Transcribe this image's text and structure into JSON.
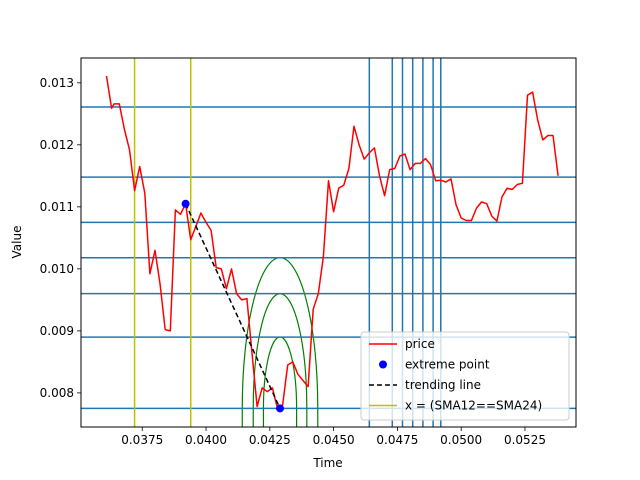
{
  "chart_data": {
    "type": "line",
    "title": "",
    "xlabel": "Time",
    "ylabel": "Value",
    "xlim": [
      0.0351,
      0.0545
    ],
    "ylim": [
      0.00745,
      0.0134
    ],
    "xticks": [
      0.0375,
      0.04,
      0.0425,
      0.045,
      0.0475,
      0.05,
      0.0525
    ],
    "xtick_labels": [
      "0.0375",
      "0.0400",
      "0.0425",
      "0.0450",
      "0.0475",
      "0.0500",
      "0.0525"
    ],
    "yticks": [
      0.008,
      0.009,
      0.01,
      0.011,
      0.012,
      0.013
    ],
    "ytick_labels": [
      "0.008",
      "0.009",
      "0.010",
      "0.011",
      "0.012",
      "0.013"
    ],
    "grid": false,
    "legend_position": "lower-right",
    "colors": {
      "price": "#ff0000",
      "extreme": "#0000ff",
      "trend": "#000000",
      "sma": "#bfbf00",
      "levels": "#1f77b4",
      "arcs": "#008000"
    },
    "series": [
      {
        "name": "price",
        "kind": "line",
        "x": [
          0.0361,
          0.0363,
          0.0364,
          0.0366,
          0.0368,
          0.037,
          0.0372,
          0.0374,
          0.0376,
          0.0378,
          0.038,
          0.0382,
          0.0384,
          0.0386,
          0.0388,
          0.039,
          0.0392,
          0.0394,
          0.0396,
          0.0398,
          0.04,
          0.0402,
          0.0404,
          0.0406,
          0.0408,
          0.041,
          0.0412,
          0.0414,
          0.0416,
          0.0418,
          0.042,
          0.0422,
          0.0424,
          0.0426,
          0.0428,
          0.043,
          0.0432,
          0.0434,
          0.0436,
          0.0438,
          0.044,
          0.0442,
          0.0444,
          0.0446,
          0.0448,
          0.045,
          0.0452,
          0.0454,
          0.0456,
          0.0458,
          0.046,
          0.0462,
          0.0464,
          0.0466,
          0.0468,
          0.047,
          0.0472,
          0.0474,
          0.0476,
          0.0478,
          0.048,
          0.0482,
          0.0484,
          0.0486,
          0.0488,
          0.049,
          0.0492,
          0.0494,
          0.0496,
          0.0498,
          0.05,
          0.0502,
          0.0504,
          0.0506,
          0.0508,
          0.051,
          0.0512,
          0.0514,
          0.0516,
          0.0518,
          0.052,
          0.0522,
          0.0524,
          0.0526,
          0.0528,
          0.053,
          0.0532,
          0.0534,
          0.0536,
          0.0538
        ],
        "y": [
          0.01311,
          0.01259,
          0.01266,
          0.01266,
          0.01225,
          0.01192,
          0.01126,
          0.01165,
          0.01122,
          0.00992,
          0.0103,
          0.00975,
          0.00902,
          0.009,
          0.01095,
          0.01088,
          0.01105,
          0.01047,
          0.01068,
          0.0109,
          0.01075,
          0.01062,
          0.01002,
          0.01,
          0.00968,
          0.01,
          0.0096,
          0.0095,
          0.00952,
          0.00864,
          0.00778,
          0.00808,
          0.00802,
          0.00808,
          0.00775,
          0.0078,
          0.00845,
          0.0085,
          0.0083,
          0.0082,
          0.0081,
          0.00935,
          0.0096,
          0.0102,
          0.01142,
          0.01092,
          0.0113,
          0.01135,
          0.01162,
          0.0123,
          0.012,
          0.01177,
          0.01187,
          0.01195,
          0.0115,
          0.01118,
          0.0116,
          0.01162,
          0.01182,
          0.01185,
          0.0116,
          0.0117,
          0.0117,
          0.01178,
          0.01168,
          0.01142,
          0.01143,
          0.0114,
          0.01145,
          0.01103,
          0.01082,
          0.01078,
          0.01078,
          0.01098,
          0.01108,
          0.01105,
          0.01085,
          0.01077,
          0.01116,
          0.0113,
          0.01128,
          0.01136,
          0.01138,
          0.0128,
          0.01285,
          0.0124,
          0.01208,
          0.01215,
          0.01215,
          0.0115
        ]
      },
      {
        "name": "extreme point",
        "kind": "scatter",
        "x": [
          0.0392,
          0.0429
        ],
        "y": [
          0.01105,
          0.00775
        ]
      },
      {
        "name": "trending line",
        "kind": "dashed-line",
        "x": [
          0.0392,
          0.0429
        ],
        "y": [
          0.01105,
          0.00775
        ]
      },
      {
        "name": "x = (SMA12==SMA24)",
        "kind": "vlines",
        "x": [
          0.0372,
          0.0394
        ]
      }
    ],
    "horizontal_levels": [
      0.00775,
      0.0089,
      0.0096,
      0.01018,
      0.01075,
      0.01148,
      0.01261,
      0.01341
    ],
    "vertical_levels": [
      0.0464,
      0.0473,
      0.0477,
      0.0481,
      0.0485,
      0.0489,
      0.0492
    ],
    "arcs": {
      "center": [
        0.0429,
        0.00775
      ],
      "x_half_widths": [
        0.00065,
        0.00105,
        0.00148
      ],
      "peaks": [
        0.0089,
        0.0096,
        0.01018
      ]
    },
    "legend": [
      "price",
      "extreme point",
      "trending line",
      "x = (SMA12==SMA24)"
    ]
  }
}
